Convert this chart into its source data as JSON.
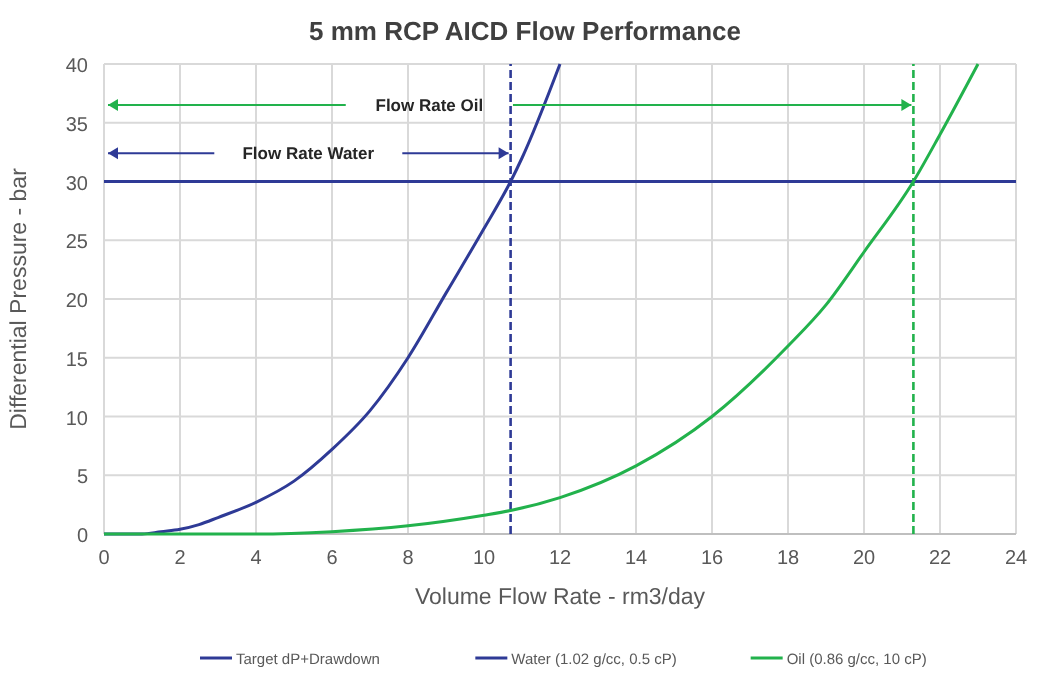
{
  "chart_data": {
    "type": "line",
    "title": "5 mm RCP AICD Flow Performance",
    "xlabel": "Volume Flow Rate - rm3/day",
    "ylabel": "Differential Pressure - bar",
    "xlim": [
      0,
      24
    ],
    "xticks": [
      0,
      2,
      4,
      6,
      8,
      10,
      12,
      14,
      16,
      18,
      20,
      22,
      24
    ],
    "ylim": [
      0,
      40
    ],
    "yticks": [
      0,
      5,
      10,
      15,
      20,
      25,
      30,
      35,
      40
    ],
    "grid": true,
    "legend": "bottom",
    "marker": "none",
    "line_style": "solid",
    "series": [
      {
        "name": "Target dP+Drawdown",
        "color": "#2e3a96",
        "x": [
          0,
          24
        ],
        "values": [
          30,
          30
        ]
      },
      {
        "name": "Water (1.02 g/cc, 0.5 cP)",
        "color": "#2e3a96",
        "x": [
          0,
          1,
          1.5,
          2,
          2.5,
          3,
          4,
          5,
          6,
          7,
          8,
          9,
          10,
          10.7,
          11,
          12
        ],
        "values": [
          0,
          0,
          0.2,
          0.4,
          0.8,
          1.4,
          2.7,
          4.5,
          7.2,
          10.5,
          15,
          20.5,
          26,
          30,
          32,
          40
        ]
      },
      {
        "name": "Oil (0.86 g/cc, 10 cP)",
        "color": "#22b24c",
        "x": [
          0,
          4,
          6,
          8,
          10,
          10.7,
          12,
          14,
          16,
          18,
          19,
          20,
          21.3,
          22,
          23
        ],
        "values": [
          0,
          0,
          0.2,
          0.7,
          1.6,
          2,
          3.1,
          5.8,
          10,
          16,
          19.5,
          24,
          30,
          34,
          40
        ]
      }
    ],
    "ref_lines": [
      {
        "axis": "x",
        "value": 10.7,
        "color": "#2e3a96",
        "line_style": "dashed"
      },
      {
        "axis": "x",
        "value": 21.3,
        "color": "#22b24c",
        "line_style": "dashed"
      }
    ],
    "annotations": [
      "Flow Rate Water",
      "Flow Rate Oil"
    ]
  }
}
